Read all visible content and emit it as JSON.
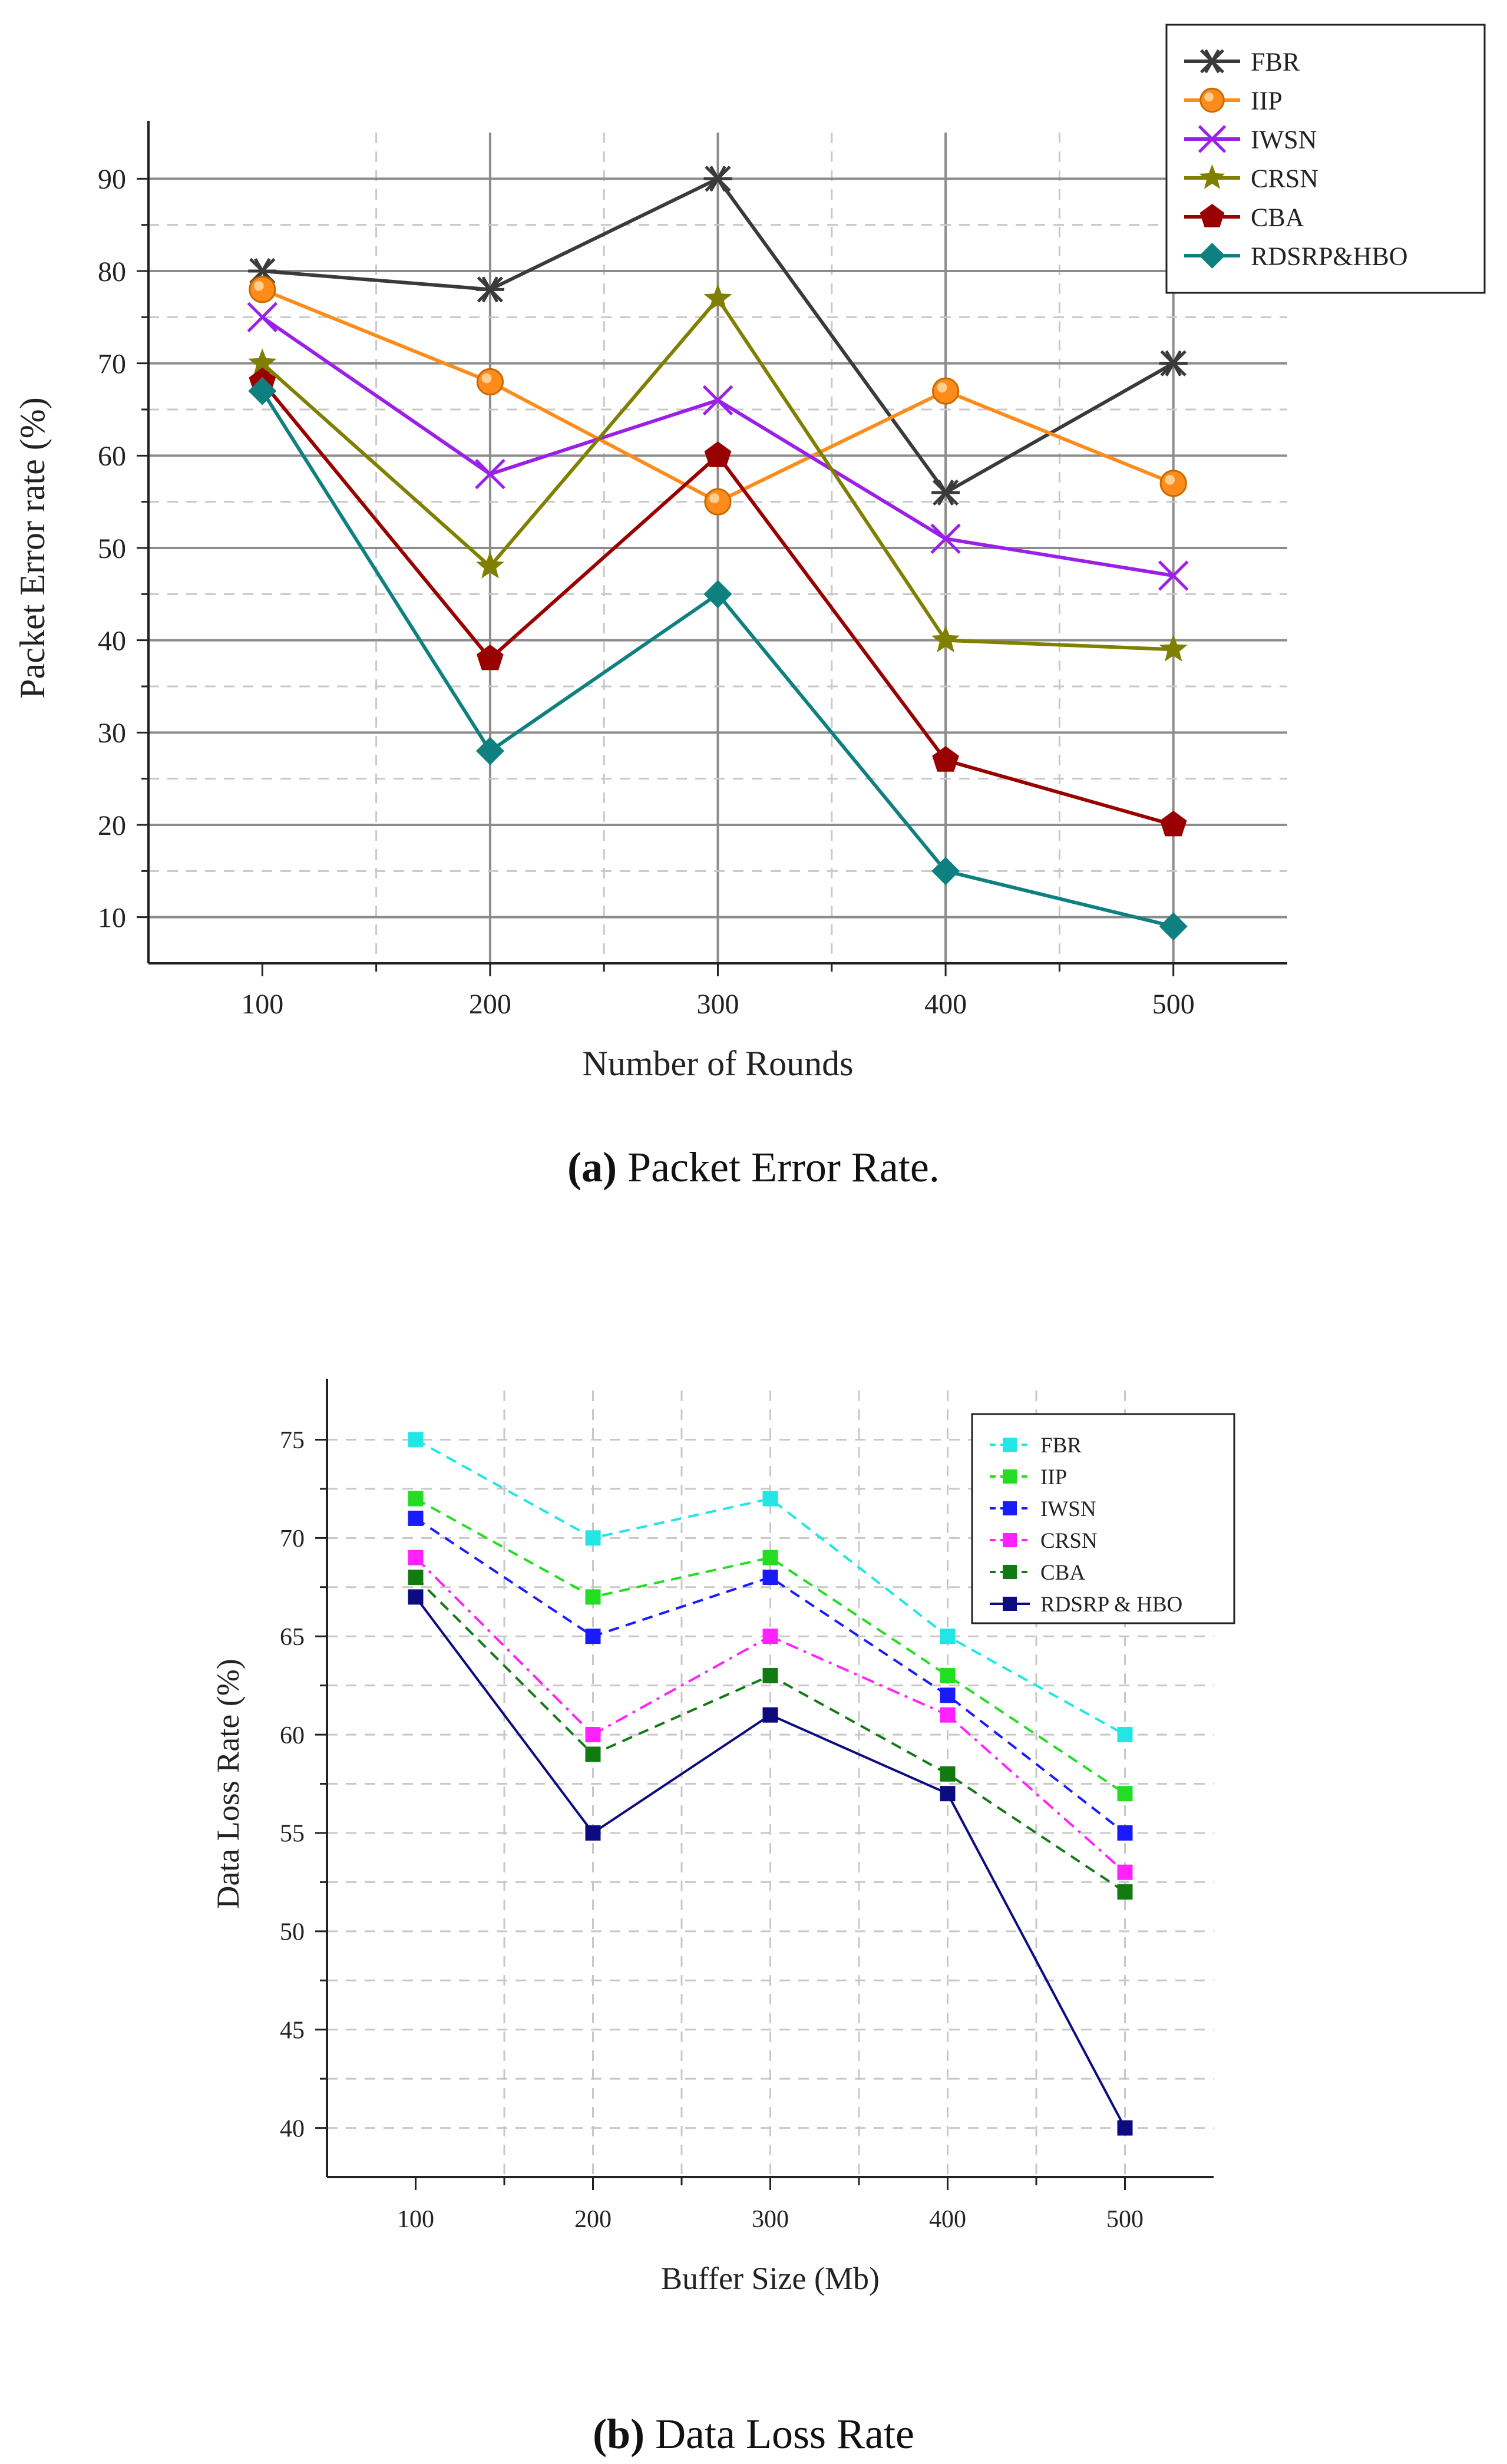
{
  "chart_data": [
    {
      "type": "line",
      "title": "",
      "caption_label": "(a)",
      "caption_text": "Packet Error Rate.",
      "xlabel": "Number of Rounds",
      "ylabel": "Packet Error rate (%)",
      "x": [
        100,
        200,
        300,
        400,
        500
      ],
      "xlim": [
        50,
        550
      ],
      "ylim": [
        5,
        95
      ],
      "yticks": [
        10,
        20,
        30,
        40,
        50,
        60,
        70,
        80,
        90
      ],
      "grid": true,
      "legend_position": "top-right",
      "series": [
        {
          "name": "FBR",
          "values": [
            80,
            78,
            90,
            56,
            70
          ],
          "color": "#3a3a3a",
          "marker": "asterisk"
        },
        {
          "name": "IIP",
          "values": [
            78,
            68,
            55,
            67,
            57
          ],
          "color": "#ff8c1a",
          "marker": "circle"
        },
        {
          "name": "IWSN",
          "values": [
            75,
            58,
            66,
            51,
            47
          ],
          "color": "#9b1fe8",
          "marker": "x"
        },
        {
          "name": "CRSN",
          "values": [
            70,
            48,
            77,
            40,
            39
          ],
          "color": "#7f7f00",
          "marker": "star"
        },
        {
          "name": "CBA",
          "values": [
            68,
            38,
            60,
            27,
            20
          ],
          "color": "#990000",
          "marker": "pentagon"
        },
        {
          "name": "RDSRP&HBO",
          "values": [
            67,
            28,
            45,
            15,
            9
          ],
          "color": "#0f8080",
          "marker": "diamond"
        }
      ]
    },
    {
      "type": "line",
      "title": "",
      "caption_label": "(b)",
      "caption_text": "Data Loss Rate",
      "xlabel": "Buffer Size (Mb)",
      "ylabel": "Data Loss Rate (%)",
      "x": [
        100,
        200,
        300,
        400,
        500
      ],
      "xlim": [
        50,
        550
      ],
      "ylim": [
        37.5,
        77.5
      ],
      "yticks": [
        40,
        45,
        50,
        55,
        60,
        65,
        70,
        75
      ],
      "grid": true,
      "legend_position": "top-right",
      "series": [
        {
          "name": "FBR",
          "values": [
            75,
            70,
            72,
            65,
            60
          ],
          "color": "#22e5e5",
          "dash": "dashed"
        },
        {
          "name": "IIP",
          "values": [
            72,
            67,
            69,
            63,
            57
          ],
          "color": "#22dd22",
          "dash": "dashed"
        },
        {
          "name": "IWSN",
          "values": [
            71,
            65,
            68,
            62,
            55
          ],
          "color": "#1a1aff",
          "dash": "dashed"
        },
        {
          "name": "CRSN",
          "values": [
            69,
            60,
            65,
            61,
            53
          ],
          "color": "#ff22ff",
          "dash": "dashdot"
        },
        {
          "name": "CBA",
          "values": [
            68,
            59,
            63,
            58,
            52
          ],
          "color": "#117a11",
          "dash": "dashed"
        },
        {
          "name": "RDSRP & HBO",
          "values": [
            67,
            55,
            61,
            57,
            40
          ],
          "color": "#0c0c80",
          "dash": "solid"
        }
      ]
    }
  ]
}
